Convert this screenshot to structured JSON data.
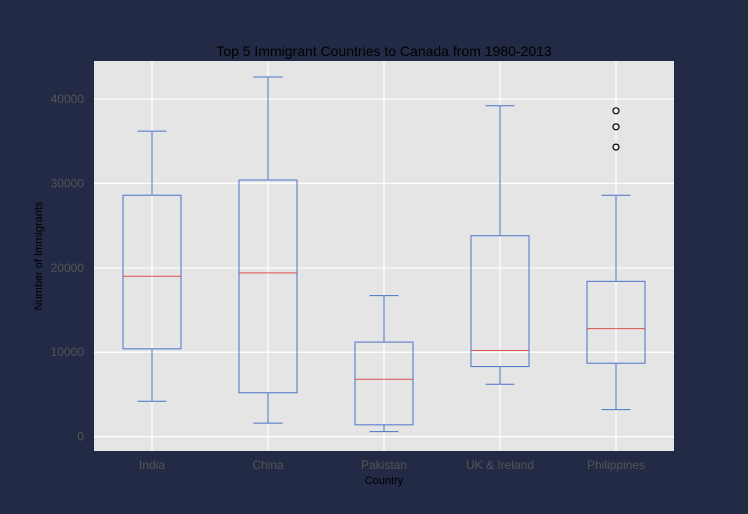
{
  "chart_data": {
    "type": "box",
    "title": "Top 5 Immigrant Countries to Canada from 1980-2013",
    "xlabel": "Country",
    "ylabel": "Number of Immigrants",
    "ylim": [
      -1700,
      44500
    ],
    "yticks": [
      0,
      10000,
      20000,
      30000,
      40000
    ],
    "ytick_labels": [
      "0",
      "10000",
      "20000",
      "30000",
      "40000"
    ],
    "grid": true,
    "categories": [
      "India",
      "China",
      "Pakistan",
      "UK & Ireland",
      "Philippines"
    ],
    "boxes": [
      {
        "whisker_low": 4200,
        "q1": 10400,
        "median": 19000,
        "q3": 28600,
        "whisker_high": 36200,
        "outliers": []
      },
      {
        "whisker_low": 1600,
        "q1": 5200,
        "median": 19400,
        "q3": 30400,
        "whisker_high": 42600,
        "outliers": []
      },
      {
        "whisker_low": 600,
        "q1": 1400,
        "median": 6800,
        "q3": 11200,
        "whisker_high": 16700,
        "outliers": []
      },
      {
        "whisker_low": 6200,
        "q1": 8300,
        "median": 10200,
        "q3": 23800,
        "whisker_high": 39200,
        "outliers": []
      },
      {
        "whisker_low": 3200,
        "q1": 8700,
        "median": 12800,
        "q3": 18400,
        "whisker_high": 28600,
        "outliers": [
          34300,
          36700,
          38600
        ]
      }
    ],
    "colors": {
      "box": "#4a72c9",
      "median": "#d9534f",
      "plot_bg": "#e5e5e5",
      "grid": "#ffffff",
      "figure_bg": "#222a45"
    }
  }
}
